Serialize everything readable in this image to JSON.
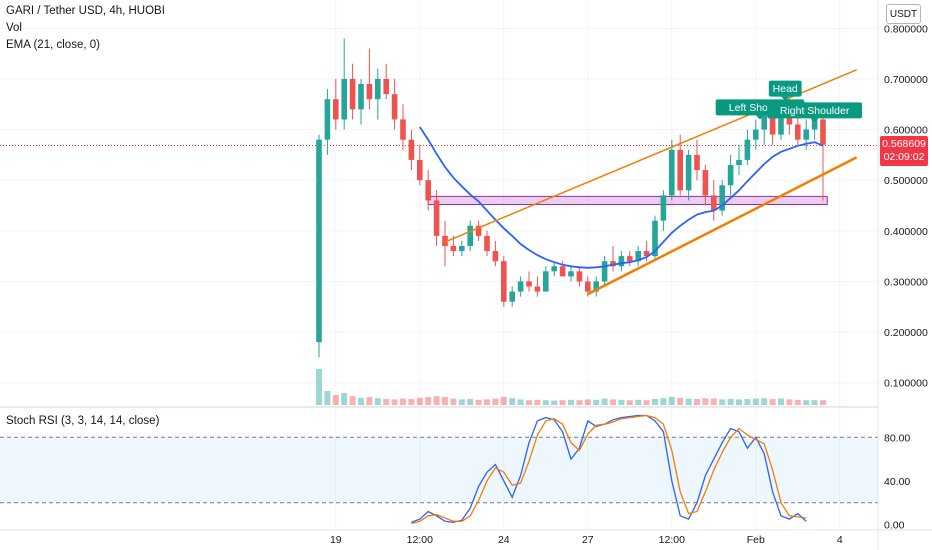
{
  "chart_data": [
    {
      "type": "candlestick",
      "title": "GARI / Tether USD, 4h, HUOBI",
      "indicators": [
        "Vol",
        "EMA (21, close, 0)"
      ],
      "unit_label": "USDT",
      "y_ticks": [
        "0.800000",
        "0.700000",
        "0.600000",
        "0.500000",
        "0.400000",
        "0.300000",
        "0.200000",
        "0.100000"
      ],
      "ylim": [
        0.05,
        0.85
      ],
      "x_ticks": [
        {
          "label": "19",
          "index": 2
        },
        {
          "label": "12:00",
          "index": 12
        },
        {
          "label": "24",
          "index": 22
        },
        {
          "label": "27",
          "index": 32
        },
        {
          "label": "12:00",
          "index": 42
        },
        {
          "label": "Feb",
          "index": 52
        },
        {
          "label": "4",
          "index": 62
        }
      ],
      "last_price": {
        "value": 0.568609,
        "label": "0.568609",
        "countdown": "02:09:02"
      },
      "ohlc": [
        [
          0.18,
          0.59,
          0.15,
          0.58
        ],
        [
          0.58,
          0.68,
          0.55,
          0.66
        ],
        [
          0.66,
          0.7,
          0.6,
          0.62
        ],
        [
          0.62,
          0.78,
          0.6,
          0.7
        ],
        [
          0.7,
          0.73,
          0.62,
          0.64
        ],
        [
          0.64,
          0.7,
          0.61,
          0.69
        ],
        [
          0.69,
          0.76,
          0.64,
          0.66
        ],
        [
          0.66,
          0.72,
          0.62,
          0.7
        ],
        [
          0.7,
          0.73,
          0.66,
          0.67
        ],
        [
          0.67,
          0.7,
          0.6,
          0.62
        ],
        [
          0.62,
          0.65,
          0.56,
          0.58
        ],
        [
          0.58,
          0.6,
          0.52,
          0.54
        ],
        [
          0.54,
          0.57,
          0.49,
          0.5
        ],
        [
          0.5,
          0.52,
          0.44,
          0.46
        ],
        [
          0.46,
          0.48,
          0.37,
          0.39
        ],
        [
          0.39,
          0.42,
          0.33,
          0.37
        ],
        [
          0.37,
          0.39,
          0.35,
          0.36
        ],
        [
          0.36,
          0.38,
          0.35,
          0.37
        ],
        [
          0.37,
          0.42,
          0.36,
          0.41
        ],
        [
          0.41,
          0.42,
          0.38,
          0.39
        ],
        [
          0.39,
          0.4,
          0.35,
          0.36
        ],
        [
          0.36,
          0.38,
          0.33,
          0.34
        ],
        [
          0.34,
          0.35,
          0.25,
          0.26
        ],
        [
          0.26,
          0.29,
          0.25,
          0.28
        ],
        [
          0.28,
          0.31,
          0.27,
          0.3
        ],
        [
          0.3,
          0.32,
          0.28,
          0.29
        ],
        [
          0.29,
          0.31,
          0.27,
          0.28
        ],
        [
          0.28,
          0.33,
          0.28,
          0.32
        ],
        [
          0.32,
          0.34,
          0.31,
          0.33
        ],
        [
          0.33,
          0.34,
          0.31,
          0.31
        ],
        [
          0.31,
          0.33,
          0.3,
          0.32
        ],
        [
          0.32,
          0.33,
          0.29,
          0.3
        ],
        [
          0.3,
          0.31,
          0.27,
          0.28
        ],
        [
          0.28,
          0.31,
          0.27,
          0.3
        ],
        [
          0.3,
          0.35,
          0.29,
          0.34
        ],
        [
          0.34,
          0.37,
          0.32,
          0.33
        ],
        [
          0.33,
          0.36,
          0.32,
          0.35
        ],
        [
          0.35,
          0.36,
          0.33,
          0.34
        ],
        [
          0.34,
          0.37,
          0.33,
          0.36
        ],
        [
          0.36,
          0.38,
          0.34,
          0.35
        ],
        [
          0.35,
          0.43,
          0.34,
          0.42
        ],
        [
          0.42,
          0.48,
          0.4,
          0.47
        ],
        [
          0.47,
          0.58,
          0.46,
          0.56
        ],
        [
          0.56,
          0.59,
          0.47,
          0.48
        ],
        [
          0.48,
          0.56,
          0.46,
          0.55
        ],
        [
          0.55,
          0.58,
          0.5,
          0.52
        ],
        [
          0.52,
          0.53,
          0.45,
          0.47
        ],
        [
          0.47,
          0.5,
          0.42,
          0.44
        ],
        [
          0.44,
          0.5,
          0.43,
          0.49
        ],
        [
          0.49,
          0.55,
          0.47,
          0.53
        ],
        [
          0.53,
          0.57,
          0.51,
          0.54
        ],
        [
          0.54,
          0.6,
          0.53,
          0.58
        ],
        [
          0.58,
          0.62,
          0.56,
          0.6
        ],
        [
          0.6,
          0.66,
          0.57,
          0.64
        ],
        [
          0.64,
          0.65,
          0.57,
          0.59
        ],
        [
          0.59,
          0.66,
          0.58,
          0.65
        ],
        [
          0.65,
          0.67,
          0.59,
          0.61
        ],
        [
          0.61,
          0.64,
          0.57,
          0.58
        ],
        [
          0.58,
          0.62,
          0.56,
          0.6
        ],
        [
          0.6,
          0.63,
          0.58,
          0.62
        ],
        [
          0.62,
          0.63,
          0.46,
          0.57
        ]
      ],
      "ema_21": [
        null,
        null,
        null,
        null,
        null,
        null,
        null,
        null,
        null,
        null,
        null,
        null,
        0.605,
        0.58,
        0.552,
        0.526,
        0.505,
        0.488,
        0.472,
        0.458,
        0.44,
        0.422,
        0.405,
        0.39,
        0.374,
        0.362,
        0.352,
        0.344,
        0.338,
        0.333,
        0.33,
        0.328,
        0.327,
        0.328,
        0.33,
        0.333,
        0.336,
        0.338,
        0.342,
        0.348,
        0.36,
        0.378,
        0.396,
        0.41,
        0.422,
        0.432,
        0.437,
        0.44,
        0.45,
        0.465,
        0.48,
        0.498,
        0.515,
        0.532,
        0.546,
        0.556,
        0.562,
        0.568,
        0.572,
        0.575,
        0.568
      ],
      "volume": [
        0.9,
        0.35,
        0.25,
        0.3,
        0.22,
        0.18,
        0.2,
        0.17,
        0.15,
        0.14,
        0.16,
        0.15,
        0.18,
        0.2,
        0.22,
        0.2,
        0.16,
        0.14,
        0.15,
        0.13,
        0.14,
        0.16,
        0.2,
        0.17,
        0.14,
        0.12,
        0.13,
        0.12,
        0.11,
        0.12,
        0.13,
        0.12,
        0.14,
        0.13,
        0.16,
        0.14,
        0.13,
        0.12,
        0.13,
        0.12,
        0.15,
        0.17,
        0.2,
        0.18,
        0.16,
        0.15,
        0.17,
        0.16,
        0.14,
        0.15,
        0.14,
        0.15,
        0.16,
        0.17,
        0.15,
        0.16,
        0.14,
        0.13,
        0.12,
        0.12,
        0.12
      ],
      "annotations": [
        {
          "type": "label",
          "text": "Left Shoulder",
          "index": 52.5,
          "price": 0.628
        },
        {
          "type": "label",
          "text": "Head",
          "index": 55.5,
          "price": 0.665
        },
        {
          "type": "label",
          "text": "Right Shoulder",
          "index": 59.0,
          "price": 0.622
        },
        {
          "type": "trendline",
          "color": "#f57c00",
          "from": [
            15,
            0.378
          ],
          "to": [
            64,
            0.718
          ]
        },
        {
          "type": "trendline",
          "color": "#f57c00",
          "from": [
            32,
            0.275
          ],
          "to": [
            64,
            0.545
          ]
        },
        {
          "type": "zone",
          "color": "#ce93d8",
          "from_index": 13,
          "to_index": 60.5,
          "price_low": 0.452,
          "price_high": 0.468
        }
      ]
    },
    {
      "type": "line",
      "title": "Stoch RSI (3, 3, 14, 14, close)",
      "y_ticks": [
        "80.00",
        "40.00",
        "0.00"
      ],
      "ylim": [
        -5,
        105
      ],
      "bands": [
        20,
        80
      ],
      "series": [
        {
          "color": "#2962ff",
          "values": [
            null,
            null,
            null,
            null,
            null,
            null,
            null,
            null,
            null,
            null,
            null,
            2,
            5,
            12,
            8,
            3,
            2,
            4,
            15,
            35,
            48,
            55,
            40,
            25,
            45,
            75,
            95,
            98,
            96,
            85,
            60,
            70,
            95,
            90,
            92,
            96,
            98,
            99,
            100,
            100,
            95,
            85,
            40,
            8,
            5,
            20,
            45,
            60,
            75,
            88,
            85,
            70,
            80,
            65,
            30,
            8,
            5,
            10,
            3
          ]
        },
        {
          "color": "#f57c00",
          "values": [
            null,
            null,
            null,
            null,
            null,
            null,
            null,
            null,
            null,
            null,
            null,
            1,
            3,
            8,
            9,
            6,
            3,
            3,
            8,
            22,
            40,
            52,
            48,
            36,
            38,
            58,
            82,
            95,
            97,
            92,
            75,
            68,
            83,
            91,
            92,
            94,
            97,
            98,
            99,
            100,
            98,
            92,
            68,
            30,
            10,
            12,
            30,
            50,
            66,
            80,
            88,
            82,
            78,
            74,
            50,
            20,
            8,
            7,
            6
          ]
        }
      ]
    }
  ]
}
